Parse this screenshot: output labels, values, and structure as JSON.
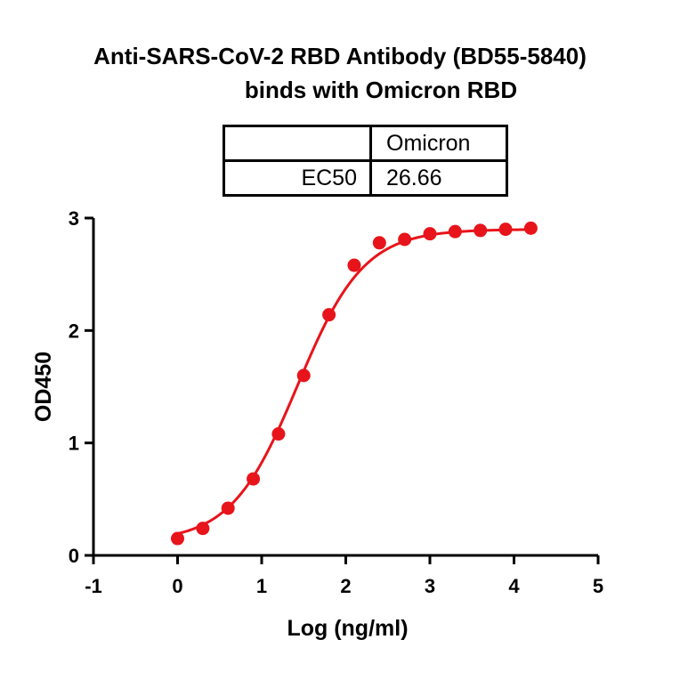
{
  "title_lines": [
    "Anti-SARS-CoV-2 RBD Antibody (BD55-5840)",
    "binds with Omicron RBD"
  ],
  "ec50_table": {
    "header": [
      "",
      "Omicron"
    ],
    "rows": [
      [
        "EC50",
        "26.66"
      ]
    ]
  },
  "chart_data": {
    "type": "scatter",
    "title": "Anti-SARS-CoV-2 RBD Antibody (BD55-5840) binds with Omicron RBD",
    "xlabel": "Log (ng/ml)",
    "ylabel": "OD450",
    "xlim": [
      -1,
      5
    ],
    "ylim": [
      0,
      3
    ],
    "xticks": [
      -1,
      0,
      1,
      2,
      3,
      4,
      5
    ],
    "yticks": [
      0,
      1,
      2,
      3
    ],
    "grid": false,
    "series": [
      {
        "color": "#e8141b",
        "x": [
          0,
          0.3,
          0.6,
          0.9,
          1.2,
          1.5,
          1.8,
          2.1,
          2.4,
          2.7,
          3.0,
          3.3,
          3.6,
          3.9,
          4.2
        ],
        "y": [
          0.15,
          0.24,
          0.42,
          0.68,
          1.08,
          1.6,
          2.14,
          2.58,
          2.78,
          2.81,
          2.86,
          2.88,
          2.89,
          2.9,
          2.91
        ],
        "fit": {
          "bottom": 0.12,
          "top": 2.9,
          "logEC50": 1.426,
          "hill": 1.1
        }
      }
    ]
  }
}
